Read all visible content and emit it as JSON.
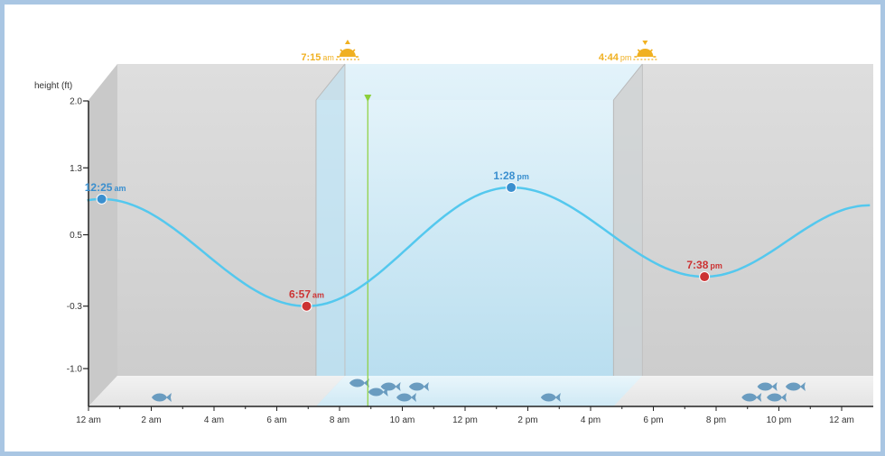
{
  "chart_data": {
    "type": "line",
    "title": "",
    "ylabel": "height (ft)",
    "xlabel": "",
    "xlim": [
      0,
      24
    ],
    "ylim": [
      -1.4,
      2.0
    ],
    "y_ticks": [
      {
        "value": 2.0,
        "label": "2.0"
      },
      {
        "value": 1.25,
        "label": "1.3"
      },
      {
        "value": 0.5,
        "label": "0.5"
      },
      {
        "value": -0.3,
        "label": "-0.3"
      },
      {
        "value": -1.0,
        "label": "-1.0"
      }
    ],
    "x_ticks": [
      {
        "value": 0,
        "label": "12 am"
      },
      {
        "value": 2,
        "label": "2 am"
      },
      {
        "value": 4,
        "label": "4 am"
      },
      {
        "value": 6,
        "label": "6 am"
      },
      {
        "value": 8,
        "label": "8 am"
      },
      {
        "value": 10,
        "label": "10 am"
      },
      {
        "value": 12,
        "label": "12 pm"
      },
      {
        "value": 14,
        "label": "2 pm"
      },
      {
        "value": 16,
        "label": "4 pm"
      },
      {
        "value": 18,
        "label": "6 pm"
      },
      {
        "value": 20,
        "label": "8 pm"
      },
      {
        "value": 22,
        "label": "10 pm"
      },
      {
        "value": 24,
        "label": "12 am"
      }
    ],
    "tides": [
      {
        "time": "12:25 am",
        "x": 0.42,
        "y": 0.9,
        "kind": "high"
      },
      {
        "time": "6:57 am",
        "x": 6.95,
        "y": -0.3,
        "kind": "low"
      },
      {
        "time": "1:28 pm",
        "x": 13.47,
        "y": 1.03,
        "kind": "high"
      },
      {
        "time": "7:38 pm",
        "x": 19.63,
        "y": 0.03,
        "kind": "low"
      }
    ],
    "curve_end": {
      "x": 24.9,
      "y": 0.83
    },
    "sunrise": {
      "label": "7:15 am",
      "x": 7.25
    },
    "sunset": {
      "label": "4:44 pm",
      "x": 16.73
    },
    "current_time_x": 8.9,
    "fish_times": [
      2.3,
      8.6,
      9.2,
      9.6,
      10.1,
      10.5,
      14.7,
      21.1,
      21.6,
      21.9,
      22.5
    ],
    "colors": {
      "curve": "#54c8ee",
      "high": "#3a8fcf",
      "low": "#cc3333",
      "sun": "#f0b020",
      "current": "#8ccf3a",
      "fish": "#6a9cc0",
      "night": "#d6d6d6",
      "day": "#c3e4f3"
    }
  }
}
